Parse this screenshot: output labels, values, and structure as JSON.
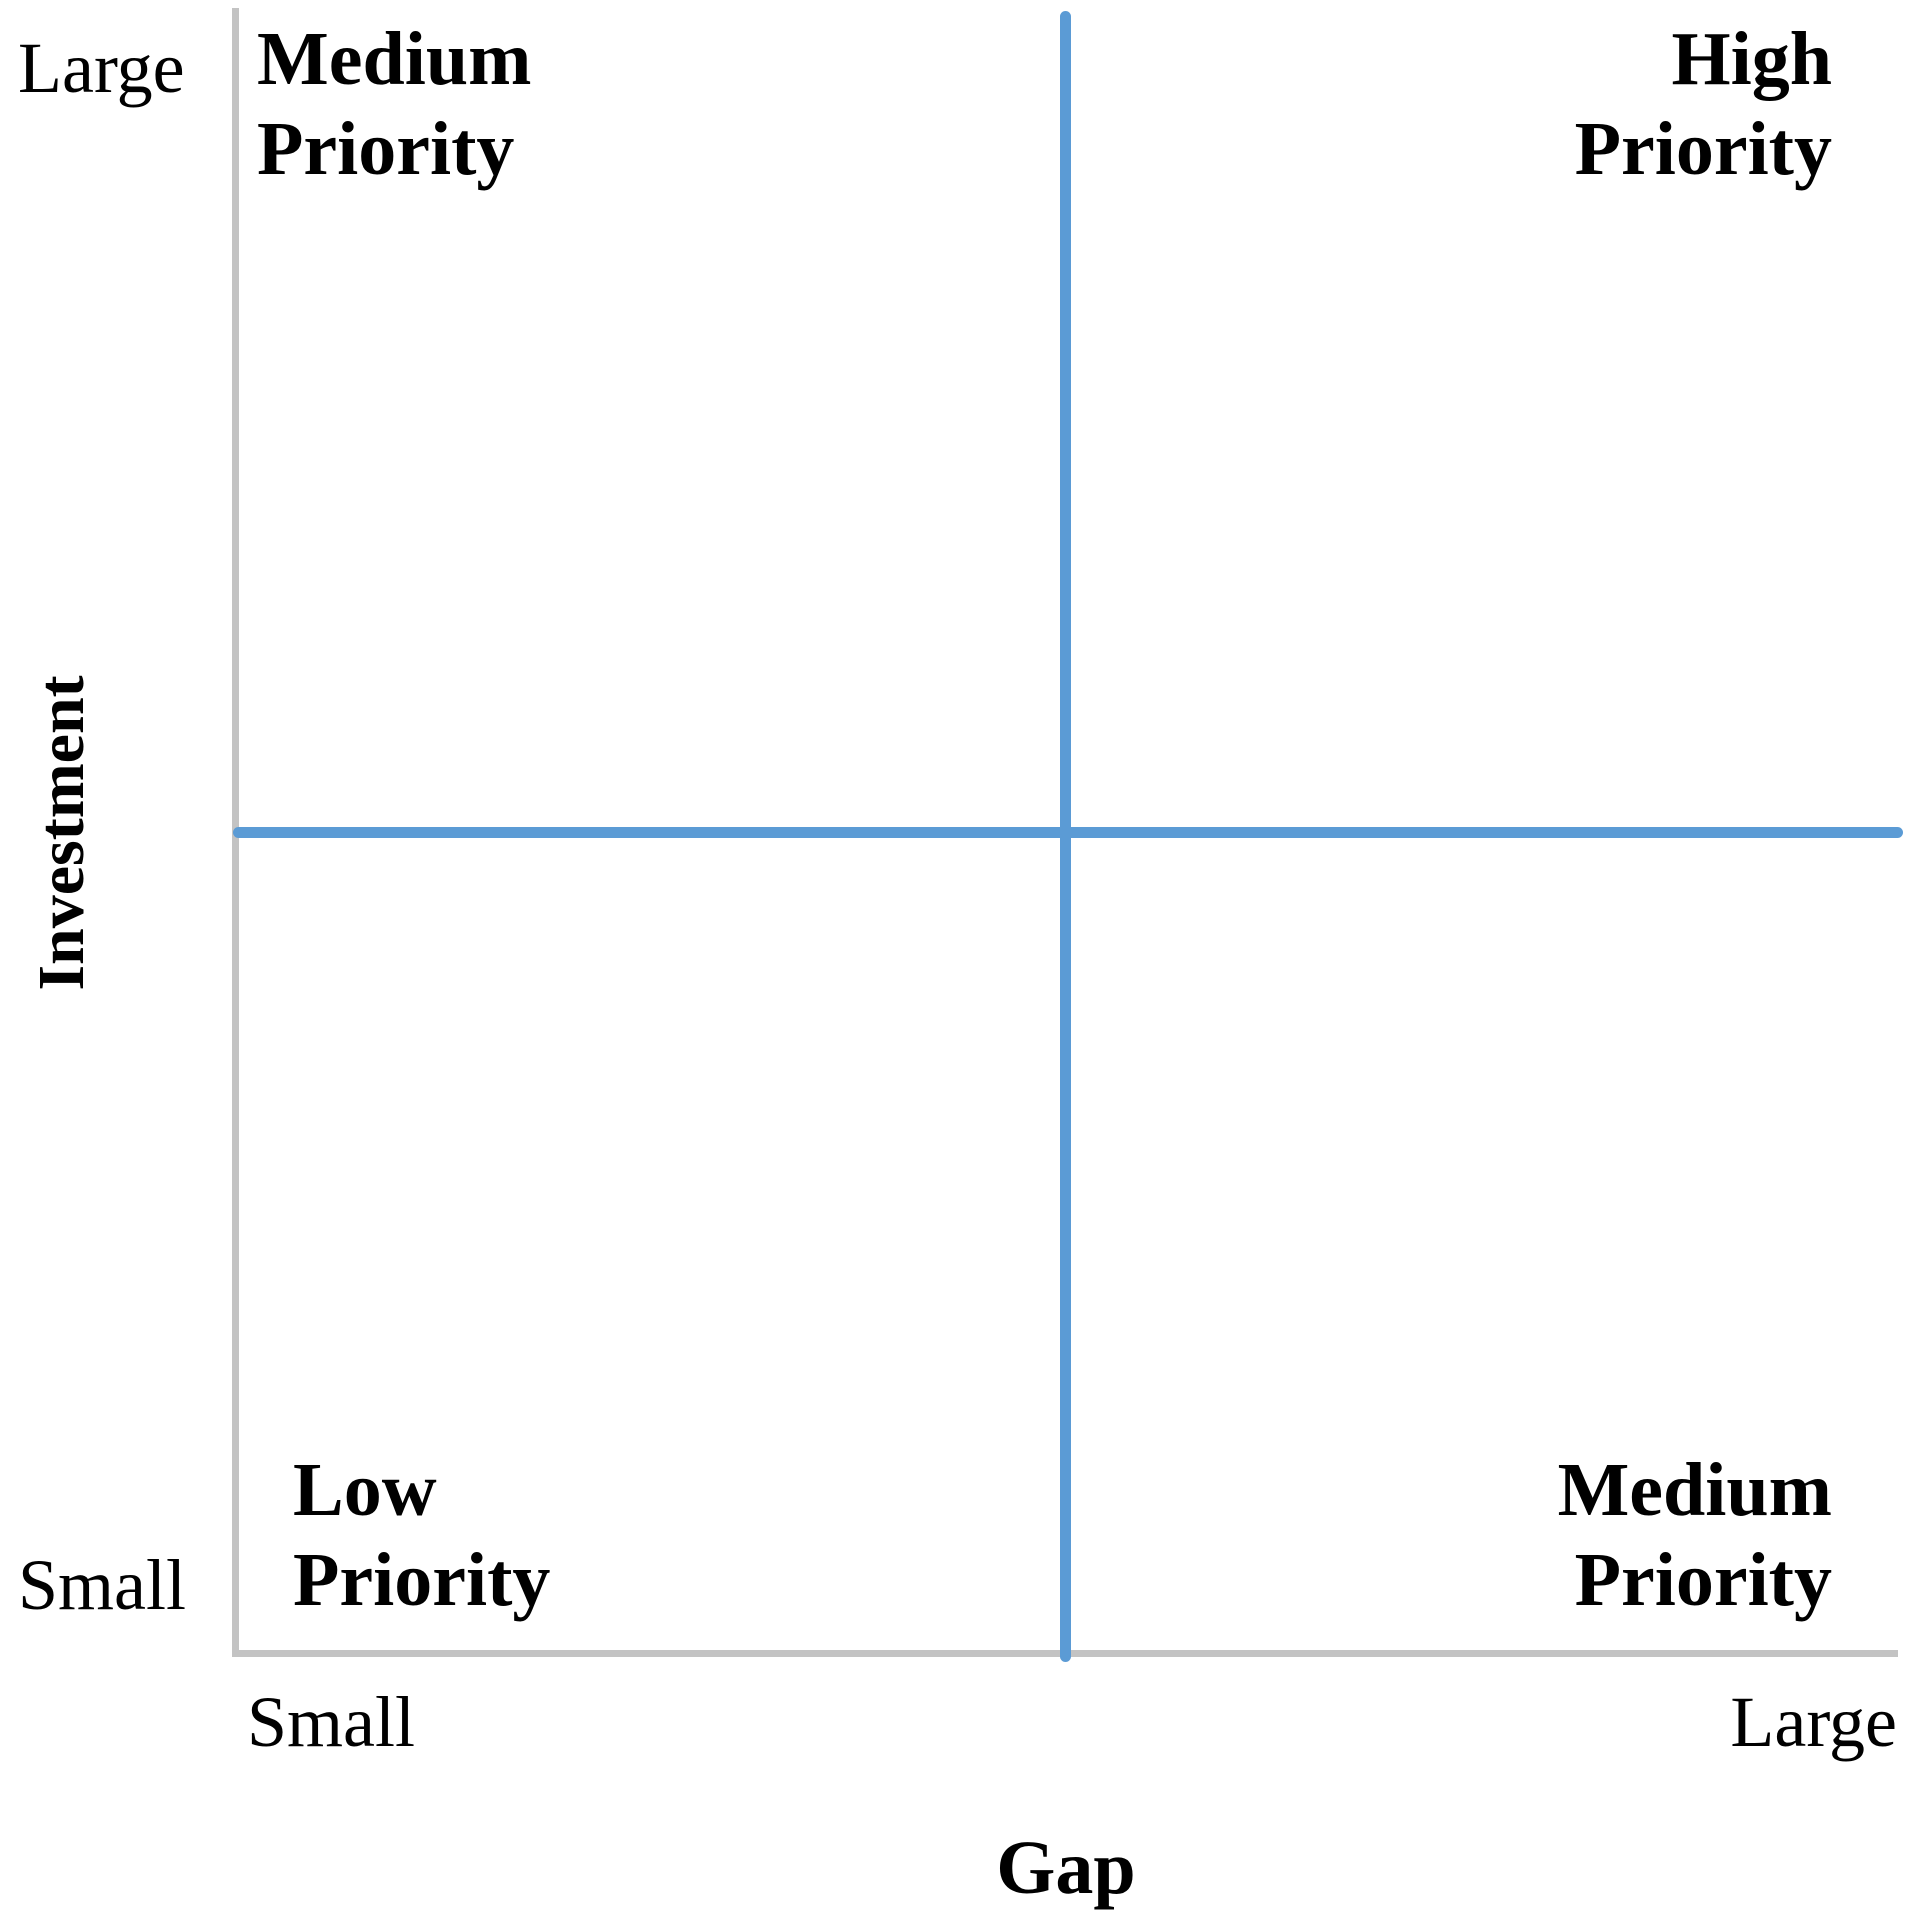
{
  "diagram": {
    "type": "priority-matrix-2x2",
    "quadrant_labels": {
      "top_left": "Medium\nPriority",
      "top_right": "High\nPriority",
      "bottom_left": "Low\nPriority",
      "bottom_right": "Medium\nPriority"
    },
    "y_axis": {
      "title": "Investment",
      "max_label": "Large",
      "min_label": "Small"
    },
    "x_axis": {
      "title": "Gap",
      "min_label": "Small",
      "max_label": "Large"
    },
    "colors": {
      "divider_blue": "#5b9bd5",
      "axis_gray": "#c3c3c3",
      "text": "#000000",
      "background": "#ffffff"
    }
  }
}
